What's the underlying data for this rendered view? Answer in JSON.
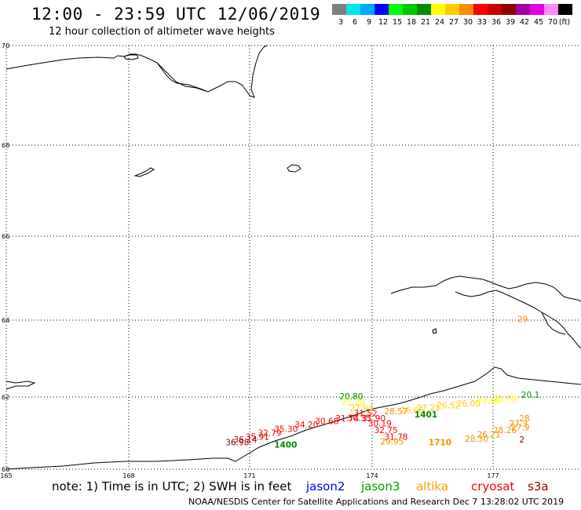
{
  "header": {
    "title": "12:00 - 23:59 UTC 12/06/2019",
    "subtitle": "12 hour collection of altimeter wave heights"
  },
  "legend": {
    "unit": "(ft)",
    "bins": [
      {
        "label": "3",
        "color": "#808080"
      },
      {
        "label": "6",
        "color": "#00e8e8"
      },
      {
        "label": "9",
        "color": "#00a8ff"
      },
      {
        "label": "12",
        "color": "#0000ff"
      },
      {
        "label": "15",
        "color": "#00ff00"
      },
      {
        "label": "18",
        "color": "#00c800"
      },
      {
        "label": "21",
        "color": "#008c00"
      },
      {
        "label": "24",
        "color": "#ffff00"
      },
      {
        "label": "27",
        "color": "#ffcc00"
      },
      {
        "label": "30",
        "color": "#ff8c00"
      },
      {
        "label": "33",
        "color": "#ff0000"
      },
      {
        "label": "36",
        "color": "#c80000"
      },
      {
        "label": "39",
        "color": "#8c0000"
      },
      {
        "label": "42",
        "color": "#a000a0"
      },
      {
        "label": "45",
        "color": "#e000e0"
      },
      {
        "label": "70",
        "color": "#ff88ff"
      },
      {
        "label": "",
        "color": "#000000"
      }
    ]
  },
  "axes": {
    "lat_labels": [
      "70",
      "68",
      "66",
      "64",
      "62",
      "60"
    ],
    "lon_labels": [
      "165",
      "168",
      "171",
      "174",
      "177"
    ]
  },
  "observations": [
    {
      "value": "20.80",
      "lat": 61.93,
      "lon": 173.2,
      "color": "#008c00"
    },
    {
      "value": "21.28",
      "lat": 61.78,
      "lon": 173.25,
      "color": "#ffff00"
    },
    {
      "value": "27.94",
      "lat": 61.61,
      "lon": 173.45,
      "color": "#ffcc00"
    },
    {
      "value": "31.52",
      "lat": 61.47,
      "lon": 173.55,
      "color": "#ff0000"
    },
    {
      "value": "30.35",
      "lat": 61.34,
      "lon": 173.4,
      "color": "#ff0000"
    },
    {
      "value": "31.90",
      "lat": 61.33,
      "lon": 173.75,
      "color": "#ff0000"
    },
    {
      "value": "30.19",
      "lat": 61.18,
      "lon": 173.9,
      "color": "#ff0000"
    },
    {
      "value": "32.75",
      "lat": 61.0,
      "lon": 174.05,
      "color": "#ff0000"
    },
    {
      "value": "31.78",
      "lat": 60.82,
      "lon": 174.3,
      "color": "#ff0000"
    },
    {
      "value": "29.95",
      "lat": 60.68,
      "lon": 174.2,
      "color": "#ff8c00"
    },
    {
      "value": "31.74",
      "lat": 61.33,
      "lon": 173.1,
      "color": "#ff0000"
    },
    {
      "value": "30.68",
      "lat": 61.25,
      "lon": 172.6,
      "color": "#ff0000"
    },
    {
      "value": "34.20",
      "lat": 61.15,
      "lon": 172.1,
      "color": "#ff0000"
    },
    {
      "value": "35.30",
      "lat": 61.03,
      "lon": 171.6,
      "color": "#ff0000"
    },
    {
      "value": "32.79",
      "lat": 60.92,
      "lon": 171.2,
      "color": "#ff0000"
    },
    {
      "value": "35.91",
      "lat": 60.82,
      "lon": 170.9,
      "color": "#c80000"
    },
    {
      "value": "36.14",
      "lat": 60.74,
      "lon": 170.6,
      "color": "#c80000"
    },
    {
      "value": "36.98",
      "lat": 60.66,
      "lon": 170.4,
      "color": "#8c0000"
    },
    {
      "value": "26.66",
      "lat": 61.55,
      "lon": 174.7,
      "color": "#ffcc00"
    },
    {
      "value": "28.57",
      "lat": 61.52,
      "lon": 174.3,
      "color": "#ff8c00"
    },
    {
      "value": "27.21",
      "lat": 61.62,
      "lon": 175.1,
      "color": "#ffcc00"
    },
    {
      "value": "26.52",
      "lat": 61.69,
      "lon": 175.6,
      "color": "#ffcc00"
    },
    {
      "value": "26.00",
      "lat": 61.74,
      "lon": 176.1,
      "color": "#ffcc00"
    },
    {
      "value": "24.66",
      "lat": 61.81,
      "lon": 176.6,
      "color": "#ffff00"
    },
    {
      "value": "23.09",
      "lat": 61.87,
      "lon": 177.0,
      "color": "#ffff00"
    },
    {
      "value": "20.1",
      "lat": 61.98,
      "lon": 177.7,
      "color": "#008c00"
    },
    {
      "value": "28.26",
      "lat": 61.0,
      "lon": 177.0,
      "color": "#ff8c00"
    },
    {
      "value": "26.21",
      "lat": 60.88,
      "lon": 176.6,
      "color": "#ff8c00"
    },
    {
      "value": "28.30",
      "lat": 60.76,
      "lon": 176.3,
      "color": "#ff8c00"
    },
    {
      "value": "27.3",
      "lat": 61.18,
      "lon": 177.4,
      "color": "#ff8c00"
    },
    {
      "value": "27.9",
      "lat": 61.08,
      "lon": 177.45,
      "color": "#ff8c00"
    },
    {
      "value": "28",
      "lat": 61.33,
      "lon": 177.65,
      "color": "#ff8c00"
    },
    {
      "value": "2",
      "lat": 60.74,
      "lon": 177.65,
      "color": "#8c0000"
    },
    {
      "value": "29",
      "lat": 63.95,
      "lon": 177.6,
      "color": "#ff8c00"
    }
  ],
  "pass_times": [
    {
      "label": "1400",
      "lat": 60.6,
      "lon": 171.6,
      "color": "#008c00"
    },
    {
      "label": "1401",
      "lat": 61.44,
      "lon": 175.05,
      "color": "#008c00"
    },
    {
      "label": "1710",
      "lat": 60.66,
      "lon": 175.4,
      "color": "#ff8c00"
    }
  ],
  "footer": {
    "note": "note: 1) Time is in UTC; 2) SWH is in feet",
    "satellites": [
      {
        "name": "jason2",
        "color": "#0000ff"
      },
      {
        "name": "jason3",
        "color": "#00a000"
      },
      {
        "name": "altika",
        "color": "#ff9a00"
      },
      {
        "name": "cryosat",
        "color": "#ff0000"
      },
      {
        "name": "s3a",
        "color": "#a00000"
      }
    ],
    "credit": "NOAA/NESDIS Center for Satellite Applications and Research   Dec  7 13:28:02 UTC 2019"
  }
}
